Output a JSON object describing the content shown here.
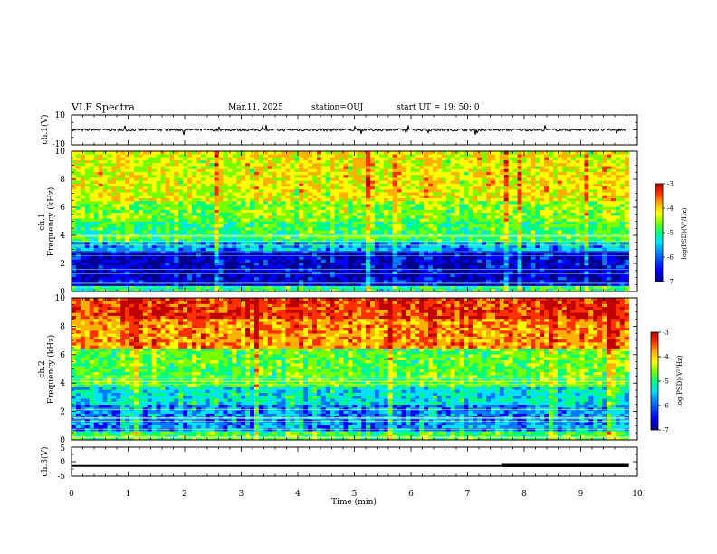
{
  "header": {
    "title": "VLF Spectra",
    "date": "Mar.11, 2025",
    "station": "station=OUJ",
    "start": "start UT =  19: 50: 0"
  },
  "chart_data": [
    {
      "type": "line",
      "id": "waveform-ch1",
      "ylabel": "ch.1(V)",
      "ylim": [
        -10,
        10
      ],
      "yticks": [
        "10",
        "-10"
      ],
      "description_values": {
        "baseline_v": 0
      }
    },
    {
      "type": "heatmap",
      "id": "spectrogram-ch1",
      "ylabel": "ch.1\nFrequency (kHz)",
      "ylim": [
        0,
        10
      ],
      "yticks": [
        "0",
        "2",
        "4",
        "6",
        "8",
        "10"
      ],
      "xlim": [
        0,
        10
      ],
      "bands": [
        {
          "from": 0,
          "to": 0.4,
          "logpsd": -5.2
        },
        {
          "from": 0.4,
          "to": 3.0,
          "logpsd": -6.6
        },
        {
          "from": 3.0,
          "to": 3.5,
          "logpsd": -5.8
        },
        {
          "from": 3.5,
          "to": 5.0,
          "logpsd": -5.1
        },
        {
          "from": 5.0,
          "to": 6.5,
          "logpsd": -4.8
        },
        {
          "from": 6.5,
          "to": 10.0,
          "logpsd": -4.4
        }
      ],
      "colorbar": {
        "label": "log(PSD)(V²/Hz)",
        "range": [
          -7,
          -3
        ],
        "ticks": [
          "-3",
          "-4",
          "-5",
          "-6",
          "-7"
        ]
      }
    },
    {
      "type": "heatmap",
      "id": "spectrogram-ch2",
      "ylabel": "ch.2\nFrequency (kHz)",
      "ylim": [
        0,
        10
      ],
      "yticks": [
        "0",
        "2",
        "4",
        "6",
        "8",
        "10"
      ],
      "xlim": [
        0,
        10
      ],
      "bands": [
        {
          "from": 0,
          "to": 0.7,
          "logpsd": -5.0
        },
        {
          "from": 0.7,
          "to": 2.5,
          "logpsd": -5.9
        },
        {
          "from": 2.5,
          "to": 3.8,
          "logpsd": -5.5
        },
        {
          "from": 3.8,
          "to": 6.5,
          "logpsd": -4.9
        },
        {
          "from": 6.5,
          "to": 8.5,
          "logpsd": -3.9
        },
        {
          "from": 8.5,
          "to": 10.0,
          "logpsd": -3.5
        }
      ],
      "colorbar": {
        "label": "log(PSD)(V²/Hz)",
        "range": [
          -7,
          -3
        ],
        "ticks": [
          "-3",
          "-4",
          "-5",
          "-6",
          "-7"
        ]
      }
    },
    {
      "type": "line",
      "id": "trace-ch3",
      "ylabel": "ch.3(V)",
      "ylim": [
        -5,
        5
      ],
      "yticks": [
        "5",
        "0",
        "-5"
      ],
      "x": [
        0,
        7.6,
        7.6,
        9.85
      ],
      "y": [
        -1.5,
        -1.5,
        -1.4,
        -1.4
      ]
    }
  ],
  "xaxis": {
    "xlabel": "Time (min)",
    "ticks": [
      "0",
      "1",
      "2",
      "3",
      "4",
      "5",
      "6",
      "7",
      "8",
      "9",
      "10"
    ],
    "xlim": [
      0,
      10
    ],
    "data_end": 9.85
  },
  "colors": {
    "colormap": [
      "#00008c",
      "#0000ff",
      "#0078ff",
      "#00e0ff",
      "#00ff78",
      "#78ff00",
      "#ffff00",
      "#ffb000",
      "#ff3000",
      "#c00000"
    ]
  }
}
